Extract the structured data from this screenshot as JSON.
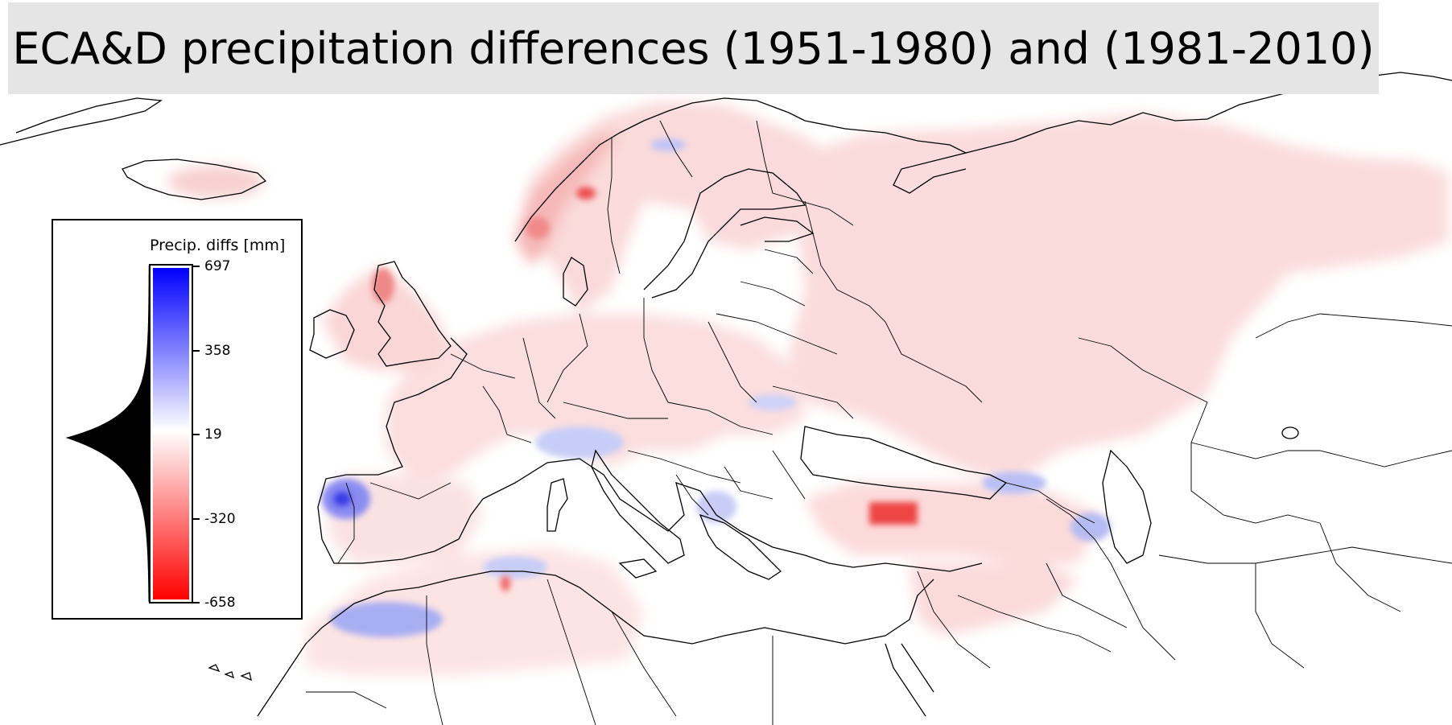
{
  "title": "ECA&D precipitation differences (1951-1980) and (1981-2010)",
  "legend": {
    "title": "Precip. diffs [mm]",
    "ticks": [
      "697",
      "358",
      "19",
      "-320",
      "-658"
    ],
    "range_min": -658,
    "range_max": 697,
    "colormap": "bwr_reversed",
    "color_high": "#0000ff",
    "color_mid": "#ffffff",
    "color_low": "#ff0000",
    "histogram_color": "#000000"
  },
  "colors": {
    "background": "#ffffff",
    "title_box": "#e5e5e5",
    "borders": "#000000",
    "diff_positive_light": "#fcd6d6",
    "diff_negative_light": "#d8dcff"
  }
}
